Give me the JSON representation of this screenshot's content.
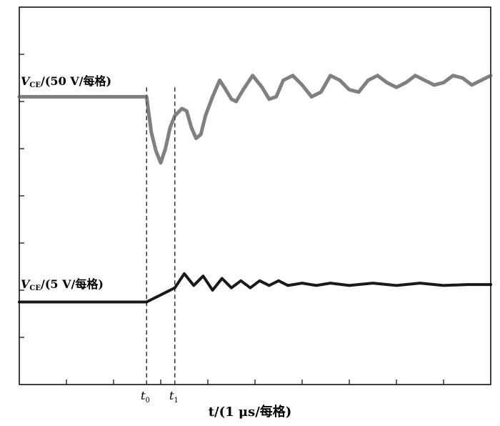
{
  "chart_data": {
    "type": "line",
    "title": "",
    "xlabel": "t/(1 μs/每格)",
    "grid": false,
    "x_divisions": 10,
    "y_divisions": 8,
    "markers": [
      {
        "name": "t",
        "sub": "0",
        "x": 2.7
      },
      {
        "name": "t",
        "sub": "1",
        "x": 3.3
      }
    ],
    "series": [
      {
        "name": "V_CE/(50 V/每格)",
        "label_main": "V",
        "label_sub": "CE",
        "label_rest": "/(50 V/每格)",
        "color": "#555555",
        "points": [
          [
            0.0,
            6.1
          ],
          [
            2.7,
            6.1
          ],
          [
            2.8,
            5.35
          ],
          [
            2.9,
            4.95
          ],
          [
            3.0,
            4.7
          ],
          [
            3.1,
            5.0
          ],
          [
            3.2,
            5.45
          ],
          [
            3.3,
            5.7
          ],
          [
            3.45,
            5.85
          ],
          [
            3.55,
            5.8
          ],
          [
            3.65,
            5.45
          ],
          [
            3.75,
            5.22
          ],
          [
            3.85,
            5.3
          ],
          [
            3.95,
            5.7
          ],
          [
            4.1,
            6.1
          ],
          [
            4.25,
            6.45
          ],
          [
            4.35,
            6.3
          ],
          [
            4.5,
            6.05
          ],
          [
            4.6,
            6.0
          ],
          [
            4.75,
            6.25
          ],
          [
            4.95,
            6.55
          ],
          [
            5.15,
            6.3
          ],
          [
            5.3,
            6.05
          ],
          [
            5.45,
            6.1
          ],
          [
            5.6,
            6.45
          ],
          [
            5.8,
            6.55
          ],
          [
            6.0,
            6.35
          ],
          [
            6.2,
            6.1
          ],
          [
            6.4,
            6.2
          ],
          [
            6.6,
            6.55
          ],
          [
            6.8,
            6.45
          ],
          [
            7.0,
            6.25
          ],
          [
            7.2,
            6.2
          ],
          [
            7.4,
            6.45
          ],
          [
            7.6,
            6.55
          ],
          [
            7.8,
            6.4
          ],
          [
            8.0,
            6.3
          ],
          [
            8.2,
            6.4
          ],
          [
            8.4,
            6.55
          ],
          [
            8.6,
            6.45
          ],
          [
            8.8,
            6.35
          ],
          [
            9.0,
            6.4
          ],
          [
            9.2,
            6.55
          ],
          [
            9.4,
            6.5
          ],
          [
            9.6,
            6.35
          ],
          [
            9.8,
            6.45
          ],
          [
            10.0,
            6.55
          ]
        ]
      },
      {
        "name": "V_CE/(5 V/每格)",
        "label_main": "V",
        "label_sub": "CE",
        "label_rest": "/(5 V/每格)",
        "color": "#000000",
        "points": [
          [
            0.0,
            1.75
          ],
          [
            2.7,
            1.75
          ],
          [
            3.3,
            2.05
          ],
          [
            3.5,
            2.35
          ],
          [
            3.7,
            2.1
          ],
          [
            3.9,
            2.3
          ],
          [
            4.1,
            2.0
          ],
          [
            4.3,
            2.25
          ],
          [
            4.5,
            2.05
          ],
          [
            4.7,
            2.2
          ],
          [
            4.9,
            2.05
          ],
          [
            5.1,
            2.2
          ],
          [
            5.3,
            2.1
          ],
          [
            5.5,
            2.2
          ],
          [
            5.7,
            2.1
          ],
          [
            6.0,
            2.15
          ],
          [
            6.3,
            2.1
          ],
          [
            6.6,
            2.15
          ],
          [
            7.0,
            2.1
          ],
          [
            7.5,
            2.15
          ],
          [
            8.0,
            2.1
          ],
          [
            8.5,
            2.15
          ],
          [
            9.0,
            2.1
          ],
          [
            9.5,
            2.12
          ],
          [
            10.0,
            2.12
          ]
        ]
      }
    ]
  }
}
